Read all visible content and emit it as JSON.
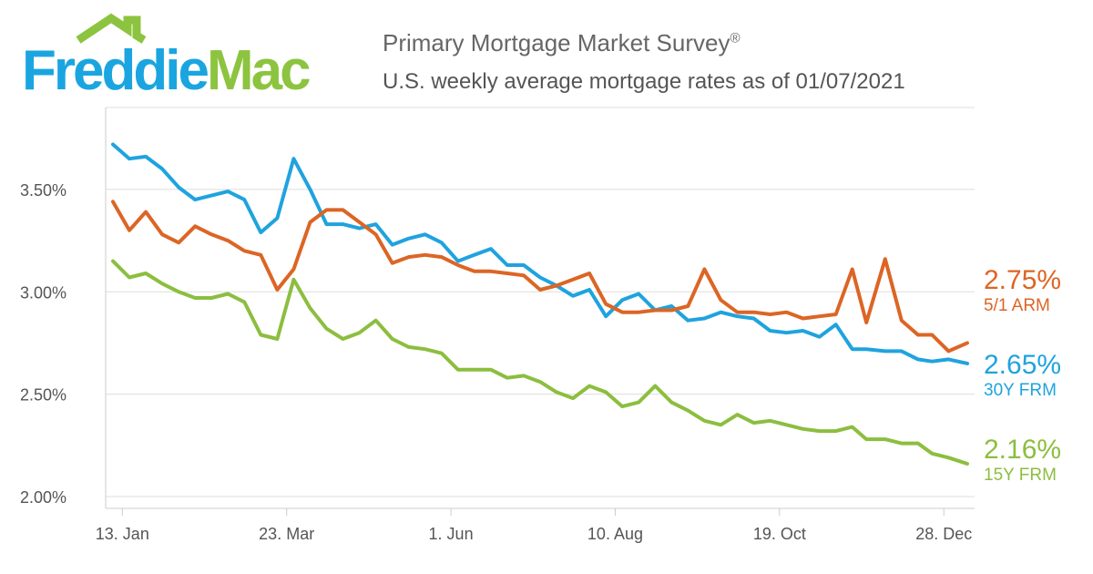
{
  "header": {
    "logo_text": "FreddieMac",
    "title": "Primary Mortgage Market Survey",
    "title_mark": "®",
    "subtitle": "U.S. weekly average mortgage rates as of 01/07/2021"
  },
  "colors": {
    "frm30": "#1fa3de",
    "arm51": "#dc6525",
    "frm15": "#8cbe3f",
    "logo_blue": "#1ba5e0",
    "logo_green": "#8cc43f",
    "grid": "#dddddd"
  },
  "end_labels": {
    "arm51": {
      "value": "2.75%",
      "name": "5/1 ARM"
    },
    "frm30": {
      "value": "2.65%",
      "name": "30Y FRM"
    },
    "frm15": {
      "value": "2.16%",
      "name": "15Y FRM"
    }
  },
  "chart_data": {
    "type": "line",
    "title": "U.S. weekly average mortgage rates as of 01/07/2021",
    "xlabel": "",
    "ylabel": "",
    "ylim": [
      2.0,
      3.9
    ],
    "yticks": [
      2.0,
      2.5,
      3.0,
      3.5
    ],
    "ytick_labels": [
      "2.00%",
      "2.50%",
      "3.00%",
      "3.50%"
    ],
    "x_range": [
      "2020-01-09",
      "2021-01-07"
    ],
    "xticks": [
      "2020-01-13",
      "2020-03-23",
      "2020-06-01",
      "2020-08-10",
      "2020-10-19",
      "2020-12-28"
    ],
    "xtick_labels": [
      "13. Jan",
      "23. Mar",
      "1. Jun",
      "10. Aug",
      "19. Oct",
      "28. Dec"
    ],
    "grid": true,
    "legend": "end-of-line labels on right",
    "x": [
      "2020-01-09",
      "2020-01-16",
      "2020-01-23",
      "2020-01-30",
      "2020-02-06",
      "2020-02-13",
      "2020-02-20",
      "2020-02-27",
      "2020-03-05",
      "2020-03-12",
      "2020-03-19",
      "2020-03-26",
      "2020-04-02",
      "2020-04-09",
      "2020-04-16",
      "2020-04-23",
      "2020-04-30",
      "2020-05-07",
      "2020-05-14",
      "2020-05-21",
      "2020-05-28",
      "2020-06-04",
      "2020-06-11",
      "2020-06-18",
      "2020-06-25",
      "2020-07-02",
      "2020-07-09",
      "2020-07-16",
      "2020-07-23",
      "2020-07-30",
      "2020-08-06",
      "2020-08-13",
      "2020-08-20",
      "2020-08-27",
      "2020-09-03",
      "2020-09-10",
      "2020-09-17",
      "2020-09-24",
      "2020-10-01",
      "2020-10-08",
      "2020-10-15",
      "2020-10-22",
      "2020-10-29",
      "2020-11-05",
      "2020-11-12",
      "2020-11-19",
      "2020-11-25",
      "2020-12-03",
      "2020-12-10",
      "2020-12-17",
      "2020-12-23",
      "2020-12-30",
      "2021-01-07"
    ],
    "series": [
      {
        "name": "30Y FRM",
        "values": [
          3.72,
          3.65,
          3.66,
          3.6,
          3.51,
          3.45,
          3.47,
          3.49,
          3.45,
          3.29,
          3.36,
          3.65,
          3.5,
          3.33,
          3.33,
          3.31,
          3.33,
          3.23,
          3.26,
          3.28,
          3.24,
          3.15,
          3.18,
          3.21,
          3.13,
          3.13,
          3.07,
          3.03,
          2.98,
          3.01,
          2.88,
          2.96,
          2.99,
          2.91,
          2.93,
          2.86,
          2.87,
          2.9,
          2.88,
          2.87,
          2.81,
          2.8,
          2.81,
          2.78,
          2.84,
          2.72,
          2.72,
          2.71,
          2.71,
          2.67,
          2.66,
          2.67,
          2.65
        ]
      },
      {
        "name": "5/1 ARM",
        "values": [
          3.44,
          3.3,
          3.39,
          3.28,
          3.24,
          3.32,
          3.28,
          3.25,
          3.2,
          3.18,
          3.01,
          3.11,
          3.34,
          3.4,
          3.4,
          3.34,
          3.28,
          3.14,
          3.17,
          3.18,
          3.17,
          3.13,
          3.1,
          3.1,
          3.09,
          3.08,
          3.01,
          3.03,
          3.06,
          3.09,
          2.94,
          2.9,
          2.9,
          2.91,
          2.91,
          2.93,
          3.11,
          2.96,
          2.9,
          2.9,
          2.89,
          2.9,
          2.87,
          2.88,
          2.89,
          3.11,
          2.85,
          3.16,
          2.86,
          2.79,
          2.79,
          2.71,
          2.75
        ]
      },
      {
        "name": "15Y FRM",
        "values": [
          3.15,
          3.07,
          3.09,
          3.04,
          3.0,
          2.97,
          2.97,
          2.99,
          2.95,
          2.79,
          2.77,
          3.06,
          2.92,
          2.82,
          2.77,
          2.8,
          2.86,
          2.77,
          2.73,
          2.72,
          2.7,
          2.62,
          2.62,
          2.62,
          2.58,
          2.59,
          2.56,
          2.51,
          2.48,
          2.54,
          2.51,
          2.44,
          2.46,
          2.54,
          2.46,
          2.42,
          2.37,
          2.35,
          2.4,
          2.36,
          2.37,
          2.35,
          2.33,
          2.32,
          2.32,
          2.34,
          2.28,
          2.28,
          2.26,
          2.26,
          2.21,
          2.19,
          2.16
        ]
      }
    ]
  }
}
